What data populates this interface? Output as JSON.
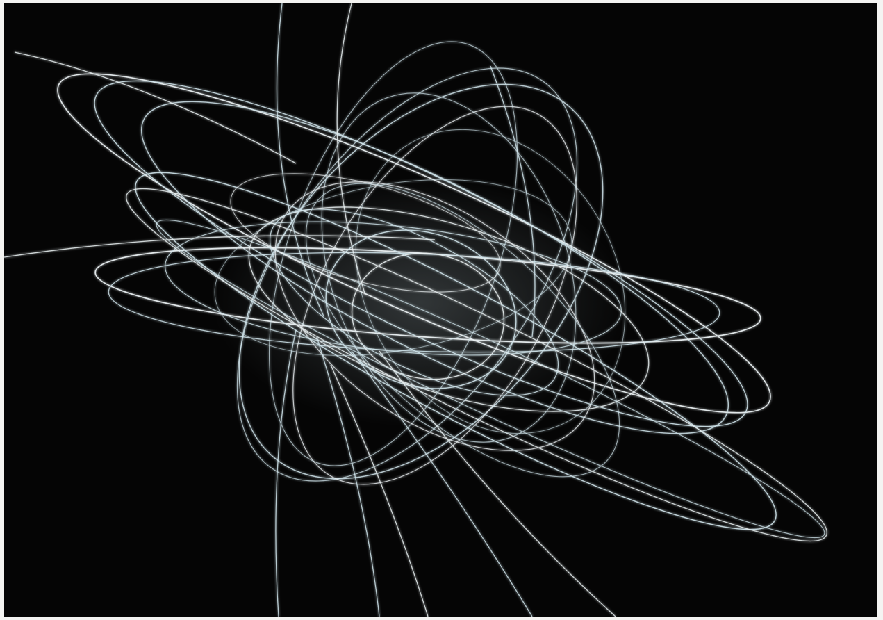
{
  "photo": {
    "subject": "light-trace-orbits-icon",
    "background_color": "#050505",
    "frame_color": "#f4f4f2",
    "trace_color": "#e8eef0",
    "trace_glow_color": "#cfe3ea"
  }
}
